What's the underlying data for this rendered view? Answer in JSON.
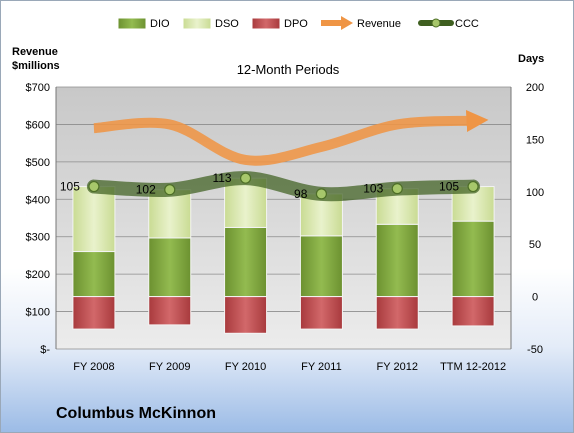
{
  "company": "Columbus McKinnon",
  "chart_data": {
    "type": "bar",
    "title": "12-Month Periods",
    "categories": [
      "FY 2008",
      "FY 2009",
      "FY 2010",
      "FY 2011",
      "FY 2012",
      "TTM 12-2012"
    ],
    "left_axis": {
      "label_line1": "Revenue",
      "label_line2": "$millions",
      "range": [
        0,
        700
      ],
      "ticks": [
        0,
        100,
        200,
        300,
        400,
        500,
        600,
        700
      ],
      "tick_labels": [
        "$-",
        "$100",
        "$200",
        "$300",
        "$400",
        "$500",
        "$600",
        "$700"
      ]
    },
    "right_axis": {
      "label": "Days",
      "range": [
        -50,
        200
      ],
      "ticks": [
        -50,
        0,
        50,
        100,
        150,
        200
      ],
      "tick_labels": [
        "-50",
        "0",
        "50",
        "100",
        "150",
        "200"
      ]
    },
    "legend": {
      "placement": "top",
      "entries": [
        {
          "name": "DIO",
          "color": "#7aa33b"
        },
        {
          "name": "DSO",
          "color": "#d6e5a8"
        },
        {
          "name": "DPO",
          "color": "#c14a4d"
        },
        {
          "name": "Revenue",
          "color": "#ef9545"
        },
        {
          "name": "CCC",
          "color": "#3f5f20"
        }
      ]
    },
    "series": [
      {
        "name": "DIO",
        "axis": "days",
        "stack": "positive",
        "values": [
          43,
          56,
          66,
          58,
          69,
          72
        ]
      },
      {
        "name": "DSO",
        "axis": "days",
        "stack": "positive",
        "values": [
          62,
          46,
          47,
          40,
          34,
          33
        ]
      },
      {
        "name": "DPO",
        "axis": "days",
        "stack": "negative",
        "values": [
          -31,
          -27,
          -35,
          -31,
          -31,
          -28
        ]
      },
      {
        "name": "Revenue",
        "axis": "revenue",
        "type": "line",
        "values": [
          590,
          600,
          505,
          540,
          600,
          610
        ]
      },
      {
        "name": "CCC",
        "axis": "days",
        "type": "line",
        "values": [
          105,
          102,
          113,
          98,
          103,
          105
        ]
      }
    ],
    "data_labels": {
      "series": "CCC",
      "values": [
        "105",
        "102",
        "113",
        "98",
        "103",
        "105"
      ]
    }
  }
}
